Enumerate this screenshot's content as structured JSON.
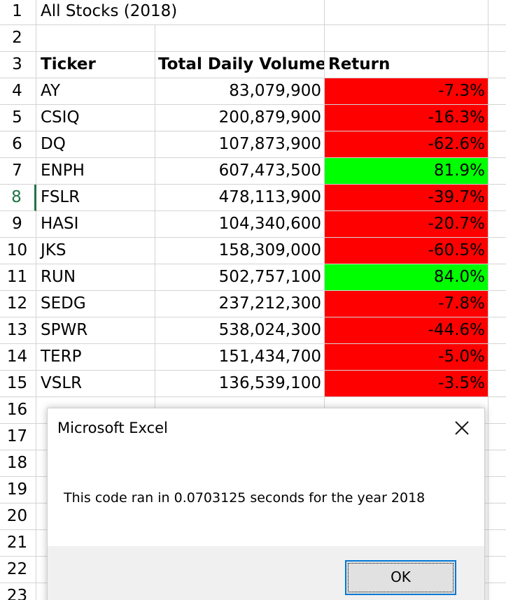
{
  "title": "All Stocks (2018)",
  "headers": {
    "ticker": "Ticker",
    "volume": "Total Daily Volume",
    "return": "Return"
  },
  "row_numbers": [
    "1",
    "2",
    "3",
    "4",
    "5",
    "6",
    "7",
    "8",
    "9",
    "10",
    "11",
    "12",
    "13",
    "14",
    "15",
    "16",
    "17",
    "18",
    "19",
    "20",
    "21",
    "22",
    "23"
  ],
  "selected_row": "8",
  "stocks": [
    {
      "ticker": "AY",
      "volume": "83,079,900",
      "return": "-7.3%",
      "status": "negative"
    },
    {
      "ticker": "CSIQ",
      "volume": "200,879,900",
      "return": "-16.3%",
      "status": "negative"
    },
    {
      "ticker": "DQ",
      "volume": "107,873,900",
      "return": "-62.6%",
      "status": "negative"
    },
    {
      "ticker": "ENPH",
      "volume": "607,473,500",
      "return": "81.9%",
      "status": "positive"
    },
    {
      "ticker": "FSLR",
      "volume": "478,113,900",
      "return": "-39.7%",
      "status": "negative"
    },
    {
      "ticker": "HASI",
      "volume": "104,340,600",
      "return": "-20.7%",
      "status": "negative"
    },
    {
      "ticker": "JKS",
      "volume": "158,309,000",
      "return": "-60.5%",
      "status": "negative"
    },
    {
      "ticker": "RUN",
      "volume": "502,757,100",
      "return": "84.0%",
      "status": "positive"
    },
    {
      "ticker": "SEDG",
      "volume": "237,212,300",
      "return": "-7.8%",
      "status": "negative"
    },
    {
      "ticker": "SPWR",
      "volume": "538,024,300",
      "return": "-44.6%",
      "status": "negative"
    },
    {
      "ticker": "TERP",
      "volume": "151,434,700",
      "return": "-5.0%",
      "status": "negative"
    },
    {
      "ticker": "VSLR",
      "volume": "136,539,100",
      "return": "-3.5%",
      "status": "negative"
    }
  ],
  "colors": {
    "negative": "#ff0000",
    "positive": "#00ff00",
    "gridline": "#d4d4d4",
    "selected_row_accent": "#217346",
    "dialog_button_border": "#0078d7"
  },
  "dialog": {
    "title": "Microsoft Excel",
    "message": "This code ran in 0.0703125 seconds for the year 2018",
    "ok_label": "OK",
    "close_icon": "close-icon"
  }
}
